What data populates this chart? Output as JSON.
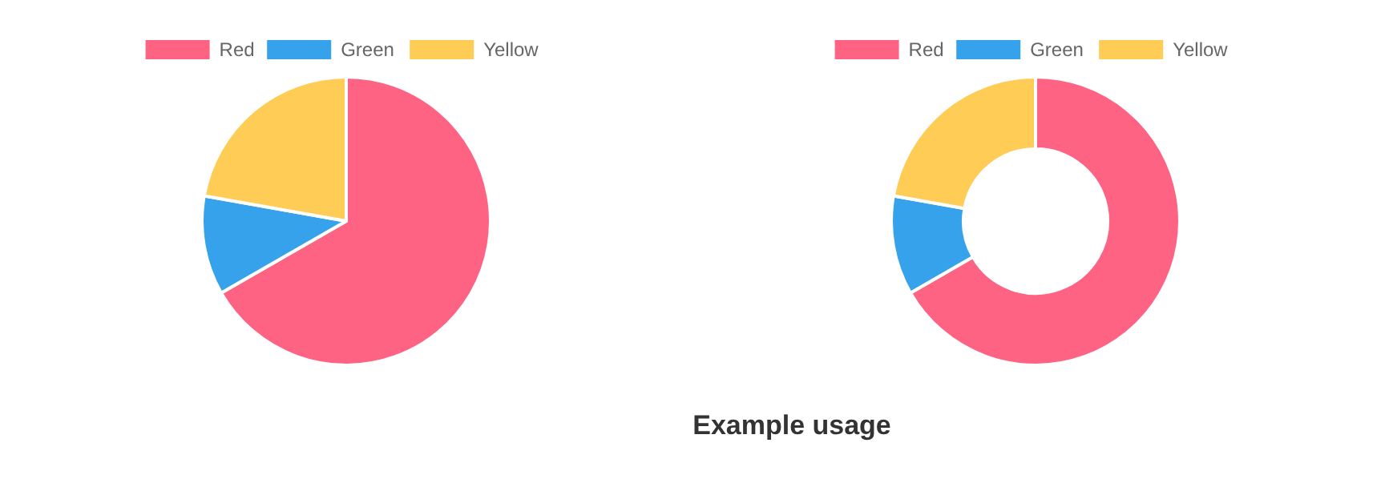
{
  "chart_data": [
    {
      "type": "pie",
      "categories": [
        "Red",
        "Green",
        "Yellow"
      ],
      "values": [
        66.7,
        11.1,
        22.2
      ],
      "colors": [
        "#ff6384",
        "#36a2eb",
        "#ffcd56"
      ],
      "legend": "top"
    },
    {
      "type": "donut",
      "categories": [
        "Red",
        "Green",
        "Yellow"
      ],
      "values": [
        66.7,
        11.1,
        22.2
      ],
      "colors": [
        "#ff6384",
        "#36a2eb",
        "#ffcd56"
      ],
      "legend": "top",
      "annotations": [
        "Example usage"
      ]
    }
  ]
}
